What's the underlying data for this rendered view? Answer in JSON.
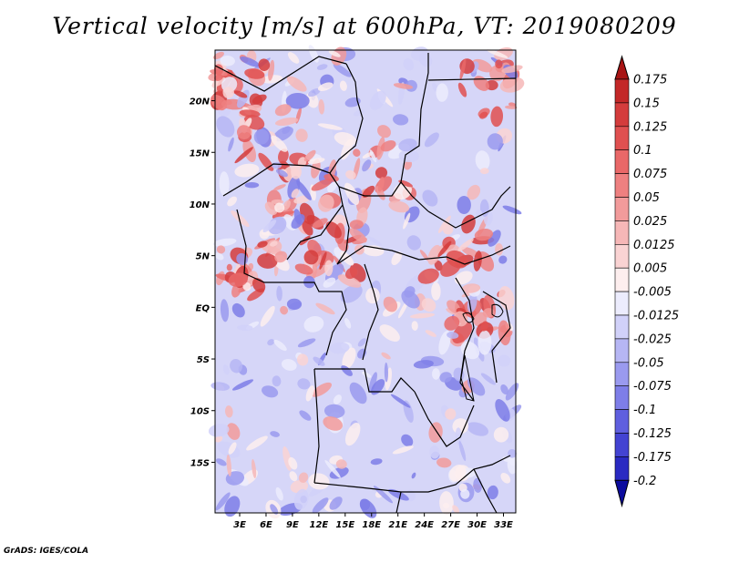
{
  "title": "Vertical velocity [m/s] at 600hPa, VT: 2019080209",
  "footer": "GrADS: IGES/COLA",
  "lat_labels": [
    "20N",
    "15N",
    "10N",
    "5N",
    "EQ",
    "5S",
    "10S",
    "15S"
  ],
  "lat_values": [
    20,
    15,
    10,
    5,
    0,
    -5,
    -10,
    -15
  ],
  "lon_labels": [
    "3E",
    "6E",
    "9E",
    "12E",
    "15E",
    "18E",
    "21E",
    "24E",
    "27E",
    "30E",
    "33E"
  ],
  "lon_values": [
    3,
    6,
    9,
    12,
    15,
    18,
    21,
    24,
    27,
    30,
    33
  ],
  "map_extent": {
    "lon_min": 0.2,
    "lon_max": 34.4,
    "lat_min": -19.9,
    "lat_max": 24.9
  },
  "colorbar": {
    "labels": [
      "0.175",
      "0.15",
      "0.125",
      "0.1",
      "0.075",
      "0.05",
      "0.025",
      "0.0125",
      "0.005",
      "-0.005",
      "-0.0125",
      "-0.025",
      "-0.05",
      "-0.075",
      "-0.1",
      "-0.125",
      "-0.175",
      "-0.2"
    ],
    "colors": [
      "#b01d1d",
      "#c32828",
      "#d43c3c",
      "#e05050",
      "#e96868",
      "#ee8080",
      "#f29b9b",
      "#f6b7b7",
      "#fad3d3",
      "#fdeeee",
      "#ececfd",
      "#d1d1f9",
      "#b6b6f4",
      "#9a9aef",
      "#7e7ee8",
      "#5f5fdf",
      "#4343d2",
      "#2a2ac2",
      "#1414ac"
    ],
    "top_arrow_color": "#a81414",
    "bottom_arrow_color": "#0c0c9e"
  },
  "chart_data": {
    "type": "heatmap",
    "title": "Vertical velocity [m/s] at 600hPa, VT: 2019080209",
    "variable": "Vertical velocity",
    "units": "m/s",
    "level": "600hPa",
    "valid_time": "2019080209",
    "x_ticks": [
      "3E",
      "6E",
      "9E",
      "12E",
      "15E",
      "18E",
      "21E",
      "24E",
      "27E",
      "30E",
      "33E"
    ],
    "y_ticks": [
      "20N",
      "15N",
      "10N",
      "5N",
      "EQ",
      "5S",
      "10S",
      "15S"
    ],
    "levels": [
      -0.2,
      -0.175,
      -0.125,
      -0.1,
      -0.075,
      -0.05,
      -0.025,
      -0.0125,
      -0.005,
      0.005,
      0.0125,
      0.025,
      0.05,
      0.075,
      0.1,
      0.125,
      0.15,
      0.175
    ]
  }
}
